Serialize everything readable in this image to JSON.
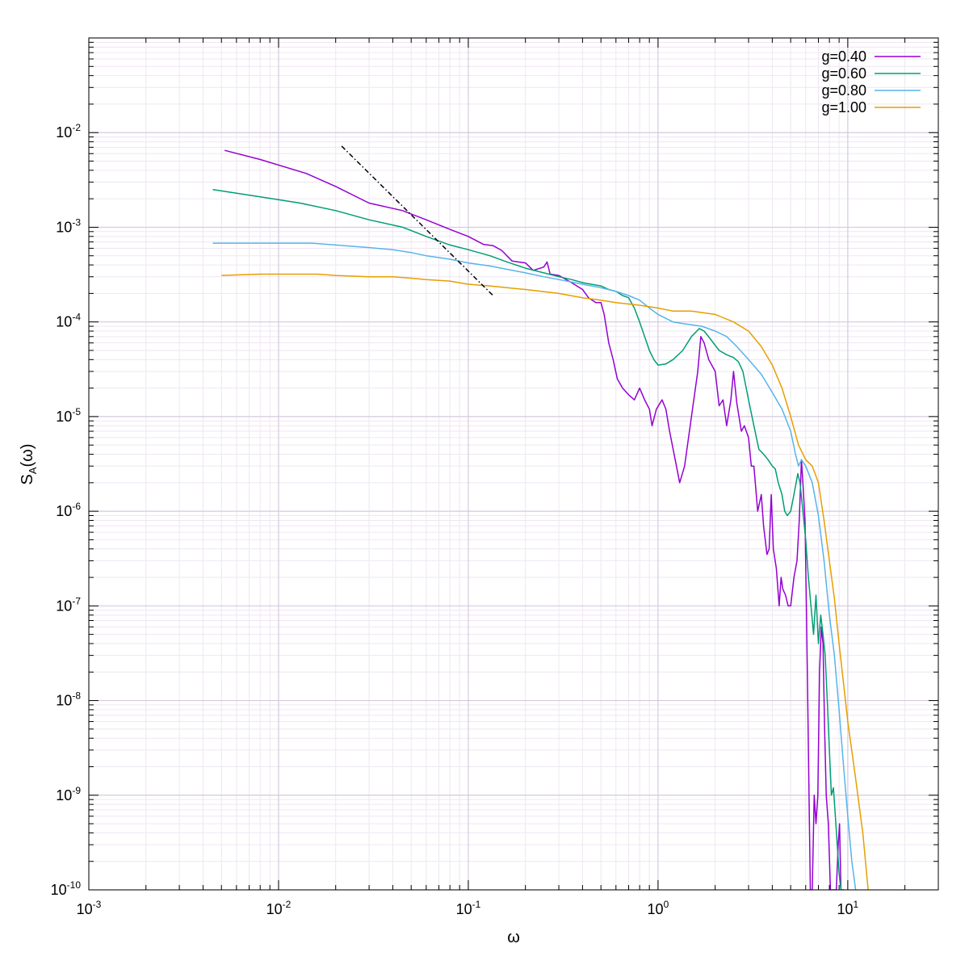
{
  "chart_data": {
    "type": "line",
    "xlabel": "ω",
    "ylabel": {
      "base": "S",
      "sub": "A",
      "rest": "(ω)"
    },
    "xscale": "log",
    "yscale": "log",
    "xlim": [
      0.001,
      30
    ],
    "ylim": [
      1e-10,
      0.1
    ],
    "x_ticks": [
      {
        "value": 0.001,
        "base": "10",
        "exp": "-3"
      },
      {
        "value": 0.01,
        "base": "10",
        "exp": "-2"
      },
      {
        "value": 0.1,
        "base": "10",
        "exp": "-1"
      },
      {
        "value": 1,
        "base": "10",
        "exp": "0"
      },
      {
        "value": 10,
        "base": "10",
        "exp": "1"
      }
    ],
    "y_ticks": [
      {
        "value": 1e-10,
        "base": "10",
        "exp": "-10"
      },
      {
        "value": 1e-09,
        "base": "10",
        "exp": "-9"
      },
      {
        "value": 1e-08,
        "base": "10",
        "exp": "-8"
      },
      {
        "value": 1e-07,
        "base": "10",
        "exp": "-7"
      },
      {
        "value": 1e-06,
        "base": "10",
        "exp": "-6"
      },
      {
        "value": 1e-05,
        "base": "10",
        "exp": "-5"
      },
      {
        "value": 0.0001,
        "base": "10",
        "exp": "-4"
      },
      {
        "value": 0.001,
        "base": "10",
        "exp": "-3"
      },
      {
        "value": 0.01,
        "base": "10",
        "exp": "-2"
      }
    ],
    "grid": true,
    "legend_position": "top-right",
    "series": [
      {
        "name": "g=0.40",
        "color": "#9400d3",
        "points": [
          [
            0.0052,
            0.0065
          ],
          [
            0.008,
            0.0052
          ],
          [
            0.014,
            0.0037
          ],
          [
            0.02,
            0.0027
          ],
          [
            0.03,
            0.0018
          ],
          [
            0.045,
            0.0015
          ],
          [
            0.06,
            0.0012
          ],
          [
            0.08,
            0.00095
          ],
          [
            0.1,
            0.0008
          ],
          [
            0.12,
            0.00066
          ],
          [
            0.135,
            0.00064
          ],
          [
            0.15,
            0.00057
          ],
          [
            0.17,
            0.00044
          ],
          [
            0.2,
            0.00042
          ],
          [
            0.22,
            0.00035
          ],
          [
            0.25,
            0.00038
          ],
          [
            0.26,
            0.00043
          ],
          [
            0.27,
            0.00032
          ],
          [
            0.3,
            0.00031
          ],
          [
            0.35,
            0.00026
          ],
          [
            0.4,
            0.00022
          ],
          [
            0.43,
            0.00018
          ],
          [
            0.47,
            0.00016
          ],
          [
            0.5,
            0.00016
          ],
          [
            0.52,
            0.00012
          ],
          [
            0.55,
            6e-05
          ],
          [
            0.58,
            4e-05
          ],
          [
            0.61,
            2.5e-05
          ],
          [
            0.65,
            2e-05
          ],
          [
            0.7,
            1.7e-05
          ],
          [
            0.75,
            1.5e-05
          ],
          [
            0.8,
            2e-05
          ],
          [
            0.85,
            1.5e-05
          ],
          [
            0.9,
            1.2e-05
          ],
          [
            0.93,
            8e-06
          ],
          [
            0.98,
            1.2e-05
          ],
          [
            1.05,
            1.5e-05
          ],
          [
            1.1,
            1.2e-05
          ],
          [
            1.15,
            7e-06
          ],
          [
            1.25,
            3e-06
          ],
          [
            1.3,
            2e-06
          ],
          [
            1.38,
            3e-06
          ],
          [
            1.5,
            1e-05
          ],
          [
            1.62,
            3e-05
          ],
          [
            1.68,
            7e-05
          ],
          [
            1.75,
            6e-05
          ],
          [
            1.85,
            4e-05
          ],
          [
            2.0,
            3e-05
          ],
          [
            2.1,
            1.3e-05
          ],
          [
            2.2,
            1.5e-05
          ],
          [
            2.3,
            8e-06
          ],
          [
            2.42,
            1.5e-05
          ],
          [
            2.5,
            3e-05
          ],
          [
            2.6,
            1.4e-05
          ],
          [
            2.75,
            7e-06
          ],
          [
            2.85,
            8e-06
          ],
          [
            3.0,
            6e-06
          ],
          [
            3.1,
            3e-06
          ],
          [
            3.2,
            3e-06
          ],
          [
            3.35,
            1e-06
          ],
          [
            3.5,
            1.5e-06
          ],
          [
            3.6,
            7e-07
          ],
          [
            3.75,
            3.5e-07
          ],
          [
            3.85,
            4e-07
          ],
          [
            3.95,
            1.5e-06
          ],
          [
            4.05,
            4e-07
          ],
          [
            4.2,
            2.5e-07
          ],
          [
            4.35,
            1e-07
          ],
          [
            4.45,
            2e-07
          ],
          [
            4.55,
            1.5e-07
          ],
          [
            4.7,
            1.3e-07
          ],
          [
            4.85,
            1e-07
          ],
          [
            5.0,
            1e-07
          ],
          [
            5.2,
            2e-07
          ],
          [
            5.4,
            3e-07
          ],
          [
            5.55,
            8e-07
          ],
          [
            5.7,
            3.5e-06
          ],
          [
            5.8,
            2e-06
          ],
          [
            5.95,
            8e-07
          ],
          [
            6.05,
            1e-07
          ],
          [
            6.15,
            1e-08
          ],
          [
            6.25,
            1e-09
          ],
          [
            6.35,
            1e-10
          ],
          [
            6.5,
            1e-10
          ],
          [
            6.65,
            1e-09
          ],
          [
            6.8,
            5e-10
          ],
          [
            6.95,
            1e-09
          ],
          [
            7.1,
            2e-08
          ],
          [
            7.25,
            6e-08
          ],
          [
            7.4,
            4e-08
          ],
          [
            7.55,
            5e-09
          ],
          [
            7.7,
            1e-09
          ],
          [
            7.9,
            5e-10
          ],
          [
            8.1,
            1e-10
          ],
          [
            8.3,
            1e-10
          ],
          [
            8.5,
            1e-10
          ],
          [
            8.7,
            1e-10
          ],
          [
            8.9,
            3e-10
          ],
          [
            9.05,
            5e-10
          ],
          [
            9.2,
            1e-10
          ],
          [
            9.4,
            1e-10
          ],
          [
            9.6,
            1e-10
          ]
        ]
      },
      {
        "name": "g=0.60",
        "color": "#009e73",
        "points": [
          [
            0.0045,
            0.0025
          ],
          [
            0.008,
            0.0021
          ],
          [
            0.013,
            0.0018
          ],
          [
            0.02,
            0.0015
          ],
          [
            0.03,
            0.0012
          ],
          [
            0.045,
            0.001
          ],
          [
            0.06,
            0.0008
          ],
          [
            0.08,
            0.00065
          ],
          [
            0.1,
            0.00058
          ],
          [
            0.13,
            0.0005
          ],
          [
            0.16,
            0.00043
          ],
          [
            0.2,
            0.00037
          ],
          [
            0.25,
            0.00033
          ],
          [
            0.3,
            0.0003
          ],
          [
            0.35,
            0.00028
          ],
          [
            0.4,
            0.00026
          ],
          [
            0.5,
            0.00024
          ],
          [
            0.55,
            0.00022
          ],
          [
            0.6,
            0.00021
          ],
          [
            0.65,
            0.00019
          ],
          [
            0.7,
            0.00018
          ],
          [
            0.75,
            0.00014
          ],
          [
            0.8,
            0.0001
          ],
          [
            0.85,
            7e-05
          ],
          [
            0.9,
            5e-05
          ],
          [
            0.95,
            4e-05
          ],
          [
            1.0,
            3.5e-05
          ],
          [
            1.1,
            3.6e-05
          ],
          [
            1.2,
            4e-05
          ],
          [
            1.35,
            5e-05
          ],
          [
            1.5,
            7e-05
          ],
          [
            1.65,
            8.5e-05
          ],
          [
            1.75,
            8e-05
          ],
          [
            1.9,
            6.5e-05
          ],
          [
            2.1,
            5e-05
          ],
          [
            2.3,
            4.5e-05
          ],
          [
            2.5,
            4.2e-05
          ],
          [
            2.65,
            3.8e-05
          ],
          [
            2.8,
            3e-05
          ],
          [
            3.0,
            1.5e-05
          ],
          [
            3.2,
            8e-06
          ],
          [
            3.4,
            4.5e-06
          ],
          [
            3.6,
            4e-06
          ],
          [
            3.8,
            3.5e-06
          ],
          [
            4.0,
            3e-06
          ],
          [
            4.15,
            2.8e-06
          ],
          [
            4.3,
            2e-06
          ],
          [
            4.5,
            1.5e-06
          ],
          [
            4.65,
            1e-06
          ],
          [
            4.8,
            9e-07
          ],
          [
            5.0,
            1e-06
          ],
          [
            5.2,
            1.5e-06
          ],
          [
            5.45,
            2.5e-06
          ],
          [
            5.6,
            2e-06
          ],
          [
            5.8,
            1e-06
          ],
          [
            6.0,
            5e-07
          ],
          [
            6.2,
            2e-07
          ],
          [
            6.4,
            1e-07
          ],
          [
            6.6,
            5e-08
          ],
          [
            6.8,
            1.3e-07
          ],
          [
            7.0,
            4e-08
          ],
          [
            7.2,
            8e-08
          ],
          [
            7.4,
            5e-08
          ],
          [
            7.6,
            3e-08
          ],
          [
            7.8,
            1e-08
          ],
          [
            8.0,
            3e-09
          ],
          [
            8.2,
            1e-09
          ],
          [
            8.4,
            1.2e-09
          ],
          [
            8.6,
            6e-10
          ],
          [
            8.8,
            3e-10
          ],
          [
            9.0,
            1.5e-10
          ],
          [
            9.2,
            1e-10
          ]
        ]
      },
      {
        "name": "g=0.80",
        "color": "#56b4e9",
        "points": [
          [
            0.0045,
            0.00068
          ],
          [
            0.007,
            0.00068
          ],
          [
            0.01,
            0.00068
          ],
          [
            0.015,
            0.00068
          ],
          [
            0.02,
            0.00065
          ],
          [
            0.03,
            0.00061
          ],
          [
            0.04,
            0.00058
          ],
          [
            0.05,
            0.00054
          ],
          [
            0.06,
            0.0005
          ],
          [
            0.08,
            0.00046
          ],
          [
            0.1,
            0.00042
          ],
          [
            0.13,
            0.00039
          ],
          [
            0.16,
            0.00036
          ],
          [
            0.2,
            0.00033
          ],
          [
            0.25,
            0.0003
          ],
          [
            0.3,
            0.00028
          ],
          [
            0.4,
            0.00025
          ],
          [
            0.5,
            0.00023
          ],
          [
            0.6,
            0.00021
          ],
          [
            0.7,
            0.00019
          ],
          [
            0.8,
            0.00017
          ],
          [
            0.9,
            0.00014
          ],
          [
            1.0,
            0.00012
          ],
          [
            1.2,
            0.0001
          ],
          [
            1.4,
            9.5e-05
          ],
          [
            1.7,
            9e-05
          ],
          [
            2.0,
            8e-05
          ],
          [
            2.3,
            7e-05
          ],
          [
            2.6,
            5.5e-05
          ],
          [
            3.0,
            4e-05
          ],
          [
            3.5,
            2.8e-05
          ],
          [
            4.0,
            1.8e-05
          ],
          [
            4.5,
            1.2e-05
          ],
          [
            5.0,
            7e-06
          ],
          [
            5.3,
            4e-06
          ],
          [
            5.5,
            3e-06
          ],
          [
            5.7,
            3.5e-06
          ],
          [
            6.0,
            3e-06
          ],
          [
            6.5,
            2e-06
          ],
          [
            7.0,
            9e-07
          ],
          [
            7.5,
            3e-07
          ],
          [
            8.0,
            8e-08
          ],
          [
            8.5,
            3e-08
          ],
          [
            9.0,
            8e-09
          ],
          [
            9.5,
            2e-09
          ],
          [
            10.0,
            6e-10
          ],
          [
            10.5,
            2e-10
          ],
          [
            11.0,
            1e-10
          ]
        ]
      },
      {
        "name": "g=1.00",
        "color": "#e69f00",
        "points": [
          [
            0.005,
            0.00031
          ],
          [
            0.008,
            0.00032
          ],
          [
            0.012,
            0.00032
          ],
          [
            0.016,
            0.00032
          ],
          [
            0.02,
            0.00031
          ],
          [
            0.03,
            0.0003
          ],
          [
            0.04,
            0.0003
          ],
          [
            0.05,
            0.00029
          ],
          [
            0.06,
            0.00028
          ],
          [
            0.08,
            0.00027
          ],
          [
            0.1,
            0.00025
          ],
          [
            0.13,
            0.00024
          ],
          [
            0.16,
            0.00023
          ],
          [
            0.2,
            0.00022
          ],
          [
            0.3,
            0.0002
          ],
          [
            0.4,
            0.00018
          ],
          [
            0.5,
            0.00017
          ],
          [
            0.6,
            0.00016
          ],
          [
            0.8,
            0.00015
          ],
          [
            1.0,
            0.00014
          ],
          [
            1.2,
            0.00013
          ],
          [
            1.5,
            0.00013
          ],
          [
            2.0,
            0.00012
          ],
          [
            2.5,
            0.0001
          ],
          [
            3.0,
            8e-05
          ],
          [
            3.5,
            5.5e-05
          ],
          [
            4.0,
            3.5e-05
          ],
          [
            4.5,
            2e-05
          ],
          [
            5.0,
            1e-05
          ],
          [
            5.5,
            5e-06
          ],
          [
            6.0,
            3.5e-06
          ],
          [
            6.5,
            3e-06
          ],
          [
            7.0,
            2e-06
          ],
          [
            7.5,
            8e-07
          ],
          [
            8.0,
            3e-07
          ],
          [
            8.5,
            1.2e-07
          ],
          [
            9.0,
            4e-08
          ],
          [
            10.0,
            6e-09
          ],
          [
            11.0,
            1.5e-09
          ],
          [
            12.0,
            4e-10
          ],
          [
            12.8,
            1e-10
          ]
        ]
      }
    ],
    "reference_line": {
      "style": "dash-dot",
      "color": "#000000",
      "points": [
        [
          0.0215,
          0.0072
        ],
        [
          0.135,
          0.00019
        ]
      ]
    }
  }
}
